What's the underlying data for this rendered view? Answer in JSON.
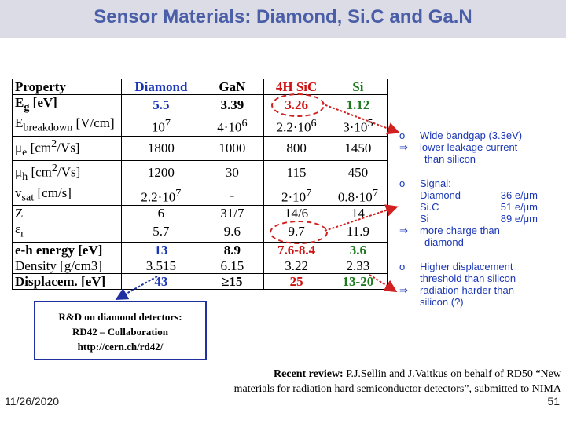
{
  "title": "Sensor Materials: Diamond,  Si.C and Ga.N",
  "table": {
    "headers": [
      "Property",
      "Diamond",
      "GaN",
      "4H SiC",
      "Si"
    ],
    "rows": [
      {
        "property_html": "E<sub>g</sub> [eV]",
        "values": [
          "5.5",
          "3.39",
          "3.26",
          "1.12"
        ]
      },
      {
        "property_html": "E<sub>breakdown</sub> [V/cm]",
        "values_html": [
          "10<sup>7</sup>",
          "4·10<sup>6</sup>",
          "2.2·10<sup>6</sup>",
          "3·10<sup>5</sup>"
        ]
      },
      {
        "property_html": "μ<sub>e</sub> [cm<sup>2</sup>/Vs]",
        "values": [
          "1800",
          "1000",
          "800",
          "1450"
        ]
      },
      {
        "property_html": "μ<sub>h</sub> [cm<sup>2</sup>/Vs]",
        "values": [
          "1200",
          "30",
          "115",
          "450"
        ]
      },
      {
        "property_html": "v<sub>sat</sub> [cm/s]",
        "values_html": [
          "2.2·10<sup>7</sup>",
          "-",
          "2·10<sup>7</sup>",
          "0.8·10<sup>7</sup>"
        ]
      },
      {
        "property_html": "Z",
        "values": [
          "6",
          "31/7",
          "14/6",
          "14"
        ]
      },
      {
        "property_html": "ε<sub>r</sub>",
        "values": [
          "5.7",
          "9.6",
          "9.7",
          "11.9"
        ]
      },
      {
        "property_html": "e-h energy [eV]",
        "values": [
          "13",
          "8.9",
          "7.6-8.4",
          "3.6"
        ]
      },
      {
        "property_html": "Density [g/cm3]",
        "values": [
          "3.515",
          "6.15",
          "3.22",
          "2.33"
        ]
      },
      {
        "property_html": "Displacem. [eV]",
        "values": [
          "43",
          "≥15",
          "25",
          "13-20"
        ]
      }
    ]
  },
  "notes": {
    "bullet1": "o",
    "arrow": "⇒",
    "group1": {
      "point": "Wide bandgap (3.3eV)",
      "implication": "lower leakage current",
      "implication_cont": "than silicon"
    },
    "group2": {
      "point": "Signal:",
      "signal_rows": [
        {
          "name": "Diamond",
          "value": "36 e/μm"
        },
        {
          "name": "Si.C",
          "value": "51 e/μm"
        },
        {
          "name": "Si",
          "value": "89 e/μm"
        }
      ],
      "implication": "more charge than",
      "implication_cont": "diamond"
    },
    "group3": {
      "point": "Higher displacement",
      "point_cont": "threshold  than silicon",
      "implication": "radiation harder than",
      "implication_cont": "silicon  (?)"
    }
  },
  "rd_box": {
    "line1": "R&D on diamond detectors:",
    "line2": "RD42 – Collaboration",
    "line3": "http://cern.ch/rd42/"
  },
  "review": {
    "label": "Recent review: ",
    "line1": "P.J.Sellin and J.Vaitkus on behalf of RD50 “New",
    "line2": "materials for radiation hard semiconductor detectors”, submitted to NIMA"
  },
  "footer": {
    "date": "11/26/2020",
    "page": "51"
  }
}
